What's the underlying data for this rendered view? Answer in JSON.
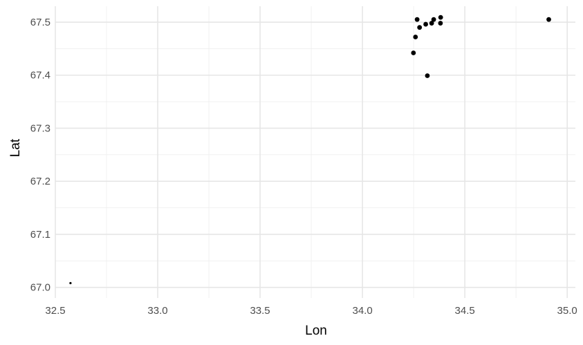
{
  "chart_data": {
    "type": "scatter",
    "xlabel": "Lon",
    "ylabel": "Lat",
    "xlim": [
      32.5,
      35.04
    ],
    "ylim": [
      66.98,
      67.53
    ],
    "x_ticks": [
      32.5,
      33.0,
      33.5,
      34.0,
      34.5,
      35.0
    ],
    "x_tick_labels": [
      "32.5",
      "33.0",
      "33.5",
      "34.0",
      "34.5",
      "35.0"
    ],
    "y_ticks": [
      67.0,
      67.1,
      67.2,
      67.3,
      67.4,
      67.5
    ],
    "y_tick_labels": [
      "67.0",
      "67.1",
      "67.2",
      "67.3",
      "67.4",
      "67.5"
    ],
    "grid": true,
    "legend": "none",
    "point_color": "#000000",
    "series": [
      {
        "points": [
          {
            "x": 32.574,
            "y": 67.008,
            "small": true
          },
          {
            "x": 34.249,
            "y": 67.442
          },
          {
            "x": 34.259,
            "y": 67.472
          },
          {
            "x": 34.267,
            "y": 67.505
          },
          {
            "x": 34.279,
            "y": 67.49
          },
          {
            "x": 34.309,
            "y": 67.496
          },
          {
            "x": 34.317,
            "y": 67.399
          },
          {
            "x": 34.338,
            "y": 67.498
          },
          {
            "x": 34.348,
            "y": 67.505
          },
          {
            "x": 34.381,
            "y": 67.498
          },
          {
            "x": 34.382,
            "y": 67.509
          },
          {
            "x": 34.91,
            "y": 67.505
          }
        ]
      }
    ]
  }
}
